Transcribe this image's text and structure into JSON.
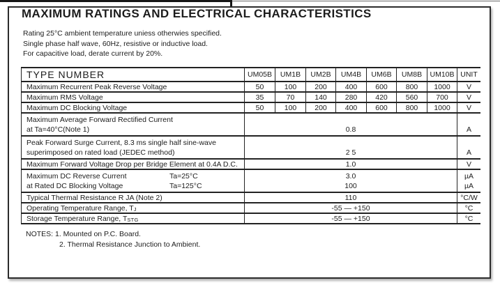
{
  "page": {
    "title": "MAXIMUM RATINGS AND ELECTRICAL CHARACTERISTICS",
    "conditions": [
      "Rating 25°C ambient temperature uniess otherwies specified.",
      "Single phase half wave, 60Hz, resistive or inductive load.",
      "For capacitive load, derate current by 20%."
    ]
  },
  "table": {
    "header": {
      "type_number": "TYPE NUMBER",
      "columns": [
        "UM05B",
        "UM1B",
        "UM2B",
        "UM4B",
        "UM6B",
        "UM8B",
        "UM10B"
      ],
      "unit": "UNIT"
    },
    "rows": {
      "recurrent_peak": {
        "label": "Maximum Recurrent Peak Reverse Voltage",
        "values": [
          "50",
          "100",
          "200",
          "400",
          "600",
          "800",
          "1000"
        ],
        "unit": "V"
      },
      "rms": {
        "label": "Maximum RMS Voltage",
        "values": [
          "35",
          "70",
          "140",
          "280",
          "420",
          "560",
          "700"
        ],
        "unit": "V"
      },
      "dc_blocking": {
        "label": "Maximum DC Blocking Voltage",
        "values": [
          "50",
          "100",
          "200",
          "400",
          "600",
          "800",
          "1000"
        ],
        "unit": "V"
      },
      "avg_forward": {
        "label_line1": "Maximum Average Forward Rectified Current",
        "label_line2": "at Ta=40°C(Note 1)",
        "value": "0.8",
        "unit": "A"
      },
      "surge": {
        "label_line1": "Peak Forward Surge Current, 8.3 ms single half sine-wave",
        "label_line2": "superimposed on rated load (JEDEC method)",
        "value": "2 5",
        "unit": "A"
      },
      "forward_voltage": {
        "label": "Maximum Forward Voltage Drop per Bridge Element at 0.4A D.C.",
        "value": "1.0",
        "unit": "V"
      },
      "reverse_current": {
        "label_line1": "Maximum DC Reverse Current",
        "cond1": "Ta=25°C",
        "value1": "3.0",
        "unit1": "µA",
        "label_line2": "at Rated DC Blocking Voltage",
        "cond2": "Ta=125°C",
        "value2": "100",
        "unit2": "µA"
      },
      "thermal": {
        "label": "Typical Thermal Resistance R JA (Note 2)",
        "value": "110",
        "unit": "°C/W"
      },
      "operating_temp": {
        "label_main": "Operating Temperature Range, T",
        "label_sub": "J",
        "value": "-55 — +150",
        "unit": "°C"
      },
      "storage_temp": {
        "label_main": "Storage Temperature Range, T",
        "label_sub": "STG",
        "value": "-55 — +150",
        "unit": "°C"
      }
    }
  },
  "notes": {
    "line1": "NOTES: 1. Mounted on P.C. Board.",
    "line2": "2. Thermal Resistance Junction to Ambient."
  }
}
